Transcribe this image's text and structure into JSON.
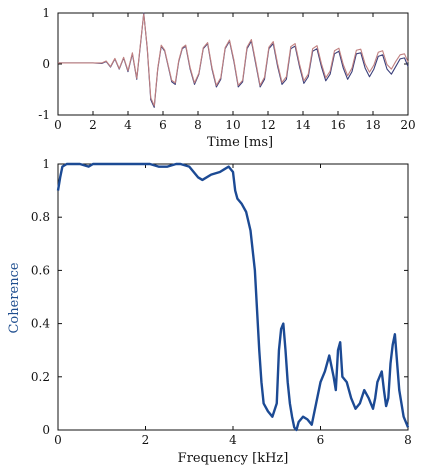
{
  "chart_data": [
    {
      "type": "line",
      "xlabel": "Time [ms]",
      "ylabel": "",
      "xlim": [
        0,
        20
      ],
      "ylim": [
        -1,
        1
      ],
      "xticks": [
        "0",
        "2",
        "4",
        "6",
        "8",
        "10",
        "12",
        "14",
        "16",
        "18",
        "20"
      ],
      "yticks": [
        "-1",
        "0",
        "1"
      ],
      "series": [
        {
          "color": "#3b3f7a",
          "x": [
            0,
            0.5,
            1,
            1.5,
            2,
            2.5,
            2.75,
            3,
            3.25,
            3.5,
            3.75,
            4,
            4.25,
            4.5,
            4.75,
            4.9,
            5.1,
            5.3,
            5.5,
            5.7,
            5.9,
            6.1,
            6.3,
            6.5,
            6.7,
            6.9,
            7.1,
            7.3,
            7.55,
            7.8,
            8.05,
            8.3,
            8.55,
            8.8,
            9.05,
            9.3,
            9.55,
            9.8,
            10.05,
            10.3,
            10.55,
            10.8,
            11.05,
            11.3,
            11.55,
            11.8,
            12.05,
            12.3,
            12.55,
            12.8,
            13.05,
            13.3,
            13.55,
            13.8,
            14.05,
            14.3,
            14.55,
            14.8,
            15.05,
            15.3,
            15.55,
            15.8,
            16.05,
            16.3,
            16.55,
            16.8,
            17.05,
            17.3,
            17.55,
            17.8,
            18.05,
            18.3,
            18.55,
            18.8,
            19.05,
            19.3,
            19.55,
            19.8,
            20
          ],
          "y": [
            0.02,
            0.02,
            0.02,
            0.02,
            0.02,
            0.01,
            0.05,
            -0.06,
            0.1,
            -0.1,
            0.12,
            -0.15,
            0.2,
            -0.3,
            0.5,
            1.0,
            0.3,
            -0.7,
            -0.85,
            -0.1,
            0.35,
            0.25,
            -0.05,
            -0.35,
            -0.4,
            0.05,
            0.3,
            0.35,
            -0.1,
            -0.4,
            -0.2,
            0.3,
            0.4,
            -0.1,
            -0.45,
            -0.3,
            0.3,
            0.45,
            0.05,
            -0.45,
            -0.35,
            0.3,
            0.45,
            0.0,
            -0.45,
            -0.3,
            0.3,
            0.4,
            -0.05,
            -0.4,
            -0.3,
            0.3,
            0.35,
            -0.05,
            -0.38,
            -0.25,
            0.25,
            0.3,
            -0.05,
            -0.33,
            -0.2,
            0.2,
            0.25,
            -0.08,
            -0.3,
            -0.15,
            0.2,
            0.22,
            -0.08,
            -0.25,
            -0.1,
            0.15,
            0.18,
            -0.1,
            -0.2,
            -0.05,
            0.1,
            0.12,
            -0.05
          ]
        },
        {
          "color": "#c08080",
          "x": [
            0,
            0.5,
            1,
            1.5,
            2,
            2.5,
            2.75,
            3,
            3.25,
            3.5,
            3.75,
            4,
            4.25,
            4.5,
            4.75,
            4.9,
            5.1,
            5.3,
            5.5,
            5.7,
            5.9,
            6.1,
            6.3,
            6.5,
            6.7,
            6.9,
            7.1,
            7.3,
            7.55,
            7.8,
            8.05,
            8.3,
            8.55,
            8.8,
            9.05,
            9.3,
            9.55,
            9.8,
            10.05,
            10.3,
            10.55,
            10.8,
            11.05,
            11.3,
            11.55,
            11.8,
            12.05,
            12.3,
            12.55,
            12.8,
            13.05,
            13.3,
            13.55,
            13.8,
            14.05,
            14.3,
            14.55,
            14.8,
            15.05,
            15.3,
            15.55,
            15.8,
            16.05,
            16.3,
            16.55,
            16.8,
            17.05,
            17.3,
            17.55,
            17.8,
            18.05,
            18.3,
            18.55,
            18.8,
            19.05,
            19.3,
            19.55,
            19.8,
            20
          ],
          "y": [
            0.02,
            0.02,
            0.02,
            0.02,
            0.02,
            0.02,
            0.06,
            -0.05,
            0.11,
            -0.09,
            0.13,
            -0.13,
            0.22,
            -0.28,
            0.52,
            0.98,
            0.32,
            -0.66,
            -0.82,
            -0.08,
            0.37,
            0.27,
            -0.03,
            -0.32,
            -0.37,
            0.07,
            0.32,
            0.37,
            -0.07,
            -0.37,
            -0.18,
            0.32,
            0.42,
            -0.07,
            -0.42,
            -0.27,
            0.32,
            0.47,
            0.08,
            -0.42,
            -0.32,
            0.33,
            0.48,
            0.04,
            -0.42,
            -0.26,
            0.33,
            0.44,
            0.0,
            -0.36,
            -0.25,
            0.34,
            0.4,
            0.0,
            -0.33,
            -0.2,
            0.3,
            0.36,
            0.01,
            -0.27,
            -0.14,
            0.26,
            0.31,
            -0.01,
            -0.23,
            -0.08,
            0.27,
            0.29,
            0.0,
            -0.16,
            -0.02,
            0.23,
            0.26,
            -0.01,
            -0.1,
            0.05,
            0.18,
            0.2,
            0.04
          ]
        }
      ]
    },
    {
      "type": "line",
      "xlabel": "Frequency [kHz]",
      "ylabel": "Coherence",
      "xlim": [
        0,
        8
      ],
      "ylim": [
        0,
        1
      ],
      "xticks": [
        "0",
        "2",
        "4",
        "6",
        "8"
      ],
      "yticks": [
        "0",
        "0.2",
        "0.4",
        "0.6",
        "0.8",
        "1"
      ],
      "series": [
        {
          "color": "#1c4a94",
          "x": [
            0,
            0.05,
            0.1,
            0.2,
            0.3,
            0.5,
            0.7,
            0.8,
            1.0,
            1.5,
            2.0,
            2.1,
            2.3,
            2.5,
            2.7,
            2.8,
            3.0,
            3.2,
            3.3,
            3.5,
            3.7,
            3.8,
            3.9,
            4.0,
            4.05,
            4.1,
            4.2,
            4.3,
            4.4,
            4.5,
            4.55,
            4.6,
            4.65,
            4.7,
            4.8,
            4.9,
            5.0,
            5.05,
            5.1,
            5.15,
            5.2,
            5.25,
            5.3,
            5.35,
            5.4,
            5.45,
            5.5,
            5.6,
            5.7,
            5.8,
            5.9,
            6.0,
            6.1,
            6.2,
            6.3,
            6.35,
            6.4,
            6.45,
            6.5,
            6.6,
            6.7,
            6.8,
            6.9,
            7.0,
            7.1,
            7.15,
            7.2,
            7.25,
            7.3,
            7.4,
            7.45,
            7.5,
            7.55,
            7.6,
            7.65,
            7.7,
            7.8,
            7.9,
            8.0
          ],
          "y": [
            0.9,
            0.95,
            0.99,
            1.0,
            1.0,
            1.0,
            0.99,
            1.0,
            1.01,
            1.01,
            1.01,
            1.01,
            0.99,
            0.99,
            1.01,
            1.01,
            0.99,
            0.95,
            0.94,
            0.96,
            0.97,
            0.98,
            0.99,
            0.97,
            0.9,
            0.87,
            0.85,
            0.82,
            0.75,
            0.6,
            0.45,
            0.3,
            0.18,
            0.1,
            0.07,
            0.05,
            0.1,
            0.3,
            0.38,
            0.4,
            0.3,
            0.18,
            0.1,
            0.05,
            0.01,
            0.0,
            0.03,
            0.05,
            0.04,
            0.02,
            0.1,
            0.18,
            0.22,
            0.28,
            0.2,
            0.15,
            0.3,
            0.33,
            0.2,
            0.18,
            0.12,
            0.08,
            0.1,
            0.15,
            0.12,
            0.1,
            0.08,
            0.12,
            0.18,
            0.22,
            0.15,
            0.09,
            0.12,
            0.25,
            0.32,
            0.36,
            0.15,
            0.05,
            0.01
          ]
        }
      ]
    }
  ]
}
